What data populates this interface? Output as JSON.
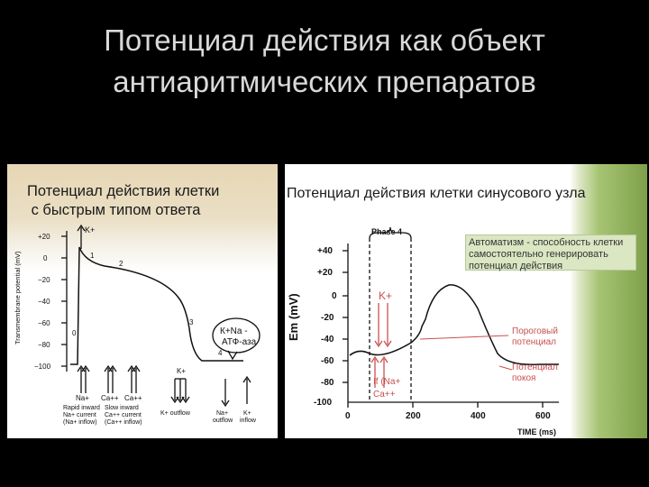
{
  "slide": {
    "title_line1": "Потенциал действия как объект",
    "title_line2": "антиаритмических препаратов"
  },
  "left_panel": {
    "header_line1": "Потенциал действия клетки",
    "header_line2": " с быстрым типом ответа",
    "y_axis_title": "Transmembrane potential (mV)",
    "y_ticks": [
      "+20",
      "0",
      "−20",
      "−40",
      "−60",
      "−80",
      "−100"
    ],
    "phase_labels": [
      "0",
      "1",
      "2",
      "3",
      "4"
    ],
    "k_top_label": "K+",
    "k_bottom_label": "K+",
    "balloon_line1": "К+Na -",
    "balloon_line2": "АТФ-аза",
    "ion_na": "Na+",
    "ion_ca1": "Ca++",
    "ion_ca2": "Ca++",
    "captions": {
      "rapid": [
        "Rapid inward",
        "Na+ current",
        "(Na+ inflow)"
      ],
      "slow": [
        "Slow inward",
        "Ca++ current",
        "(Ca++ inflow)"
      ],
      "k_outflow": "K+ outflow",
      "na_out": [
        "Na+",
        "outflow"
      ],
      "k_in": [
        "K+",
        "inflow"
      ]
    },
    "colors": {
      "header_bg": "#e6d6b4",
      "line": "#111111"
    }
  },
  "right_panel": {
    "header": "Потенциал действия клетки синусового узла",
    "phase_label": "Phase 4",
    "note_text": "Автоматизм - способность клетки самостоятельно генерировать потенциал действия",
    "y_axis_title": "Em (mV)",
    "y_ticks": [
      "+40",
      "+20",
      "0",
      "-20",
      "-40",
      "-60",
      "-80",
      "-100"
    ],
    "x_ticks": [
      "0",
      "200",
      "400",
      "600"
    ],
    "x_axis_title": "TIME (ms)",
    "k_label": "K+",
    "if_label": "If (Na+",
    "ca_label": "Ca++",
    "threshold_label": [
      "Пороговый",
      "потенциал"
    ],
    "rest_label": [
      "Потенциал",
      "покоя"
    ],
    "colors": {
      "accent": "#c8504f",
      "note_bg": "#dbe6c2",
      "green": "#7ea04a",
      "curve": "#111111"
    }
  }
}
